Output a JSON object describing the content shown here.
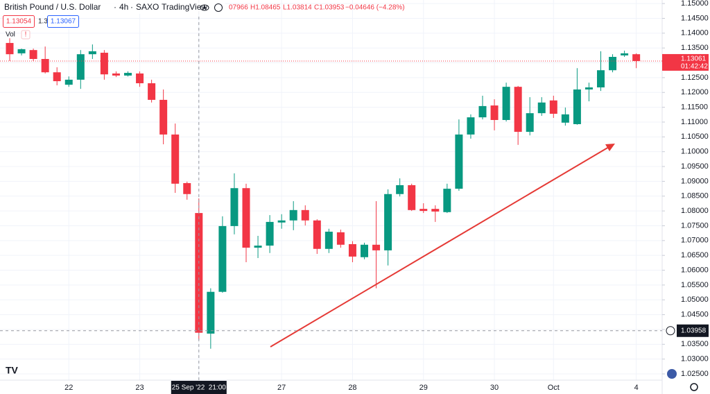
{
  "chart_data": {
    "type": "candlestick",
    "title": "British Pound / U.S. Dollar",
    "interval": "4h",
    "exchange": "SAXO",
    "source": "TradingView",
    "legend_text": [
      "07966",
      "H1.08465",
      "L1.03814",
      "C1.03953",
      "−0.04646 (−4.28%)"
    ],
    "bid": "1.13054",
    "spread": "1.3",
    "ask": "1.13067",
    "volume_label": "Vol",
    "countdown": "01:42:42",
    "up_color": "#089981",
    "down_color": "#f23645",
    "categories": [
      null,
      null,
      null,
      null,
      null,
      "22",
      null,
      null,
      null,
      null,
      null,
      "23",
      null,
      null,
      null,
      null,
      "25 Sep '22  21:00",
      null,
      null,
      null,
      null,
      null,
      null,
      "27",
      null,
      null,
      null,
      null,
      null,
      "28",
      null,
      null,
      null,
      null,
      null,
      "29",
      null,
      null,
      null,
      null,
      null,
      "30",
      null,
      null,
      null,
      null,
      "Oct",
      null,
      null,
      null,
      null,
      null,
      null,
      "4"
    ],
    "open": [
      1.1367,
      1.1332,
      1.1343,
      1.1313,
      1.1268,
      1.1226,
      1.1243,
      1.1329,
      1.1334,
      1.1264,
      1.1257,
      1.1264,
      1.1231,
      1.1175,
      1.1058,
      1.0894,
      1.0793,
      1.0386,
      1.0527,
      1.0749,
      1.0877,
      1.0676,
      1.0683,
      1.0761,
      1.0768,
      1.0803,
      1.0768,
      1.0672,
      1.0728,
      1.0688,
      1.0644,
      1.0686,
      1.0667,
      1.0857,
      1.0887,
      1.0807,
      1.0807,
      1.0796,
      1.0875,
      1.1058,
      1.1116,
      1.1156,
      1.1107,
      1.1219,
      1.1067,
      1.113,
      1.1173,
      1.1098,
      1.1093,
      1.121,
      1.1217,
      1.1275,
      1.1325,
      1.1329
    ],
    "high": [
      1.1383,
      1.1348,
      1.1348,
      1.1355,
      1.1285,
      1.1254,
      1.1343,
      1.1362,
      1.1343,
      1.1271,
      1.1271,
      1.1271,
      1.1243,
      1.121,
      1.1095,
      1.0899,
      1.0842,
      1.0539,
      1.0782,
      1.0927,
      1.0892,
      1.0716,
      1.0786,
      1.0789,
      1.0833,
      1.0819,
      1.0772,
      1.074,
      1.0737,
      1.0698,
      1.0693,
      1.0833,
      1.0873,
      1.091,
      1.0892,
      1.0826,
      1.0819,
      1.0892,
      1.1109,
      1.1126,
      1.1189,
      1.1177,
      1.1233,
      1.1222,
      1.1184,
      1.1184,
      1.1189,
      1.1149,
      1.1282,
      1.1233,
      1.1339,
      1.1329,
      1.1341,
      1.1332
    ],
    "low": [
      1.1306,
      1.1325,
      1.1306,
      1.1264,
      1.1224,
      1.1219,
      1.1212,
      1.1313,
      1.1243,
      1.1252,
      1.1254,
      1.1219,
      1.1166,
      1.1025,
      1.0861,
      1.0838,
      1.0365,
      1.0335,
      1.0524,
      1.0721,
      1.0627,
      1.0641,
      1.0658,
      1.074,
      1.0735,
      1.0751,
      1.0655,
      1.0658,
      1.0676,
      1.0627,
      1.0637,
      1.0539,
      1.0616,
      1.0849,
      1.08,
      1.0793,
      1.0763,
      1.0793,
      1.0868,
      1.1044,
      1.1109,
      1.1072,
      1.1102,
      1.1023,
      1.1055,
      1.1121,
      1.1114,
      1.1088,
      1.1091,
      1.117,
      1.1205,
      1.1268,
      1.132,
      1.1282
    ],
    "close": [
      1.1329,
      1.1346,
      1.1313,
      1.1268,
      1.1238,
      1.1243,
      1.1329,
      1.1339,
      1.1261,
      1.1257,
      1.1266,
      1.1231,
      1.1175,
      1.1058,
      1.0892,
      1.0857,
      1.0389,
      1.0527,
      1.0749,
      1.0877,
      1.0676,
      1.0683,
      1.0763,
      1.0768,
      1.0803,
      1.0768,
      1.0672,
      1.073,
      1.0686,
      1.0646,
      1.0686,
      1.0667,
      1.0857,
      1.0887,
      1.0803,
      1.08,
      1.0798,
      1.0875,
      1.1058,
      1.1116,
      1.1154,
      1.1107,
      1.1219,
      1.1067,
      1.113,
      1.1166,
      1.1128,
      1.1126,
      1.121,
      1.1217,
      1.1275,
      1.132,
      1.1332,
      1.13061
    ],
    "ylim": [
      1.0229,
      1.1512
    ],
    "yticks": [
      {
        "value": 1.025,
        "label": "1.02500"
      },
      {
        "value": 1.03,
        "label": "1.03000"
      },
      {
        "value": 1.035,
        "label": "1.03500"
      },
      {
        "value": 1.04,
        "label": "1.04000"
      },
      {
        "value": 1.045,
        "label": "1.04500"
      },
      {
        "value": 1.05,
        "label": "1.05000"
      },
      {
        "value": 1.055,
        "label": "1.05500"
      },
      {
        "value": 1.06,
        "label": "1.06000"
      },
      {
        "value": 1.065,
        "label": "1.06500"
      },
      {
        "value": 1.07,
        "label": "1.07000"
      },
      {
        "value": 1.075,
        "label": "1.07500"
      },
      {
        "value": 1.08,
        "label": "1.08000"
      },
      {
        "value": 1.085,
        "label": "1.08500"
      },
      {
        "value": 1.09,
        "label": "1.09000"
      },
      {
        "value": 1.095,
        "label": "1.09500"
      },
      {
        "value": 1.1,
        "label": "1.10000"
      },
      {
        "value": 1.105,
        "label": "1.10500"
      },
      {
        "value": 1.11,
        "label": "1.11000"
      },
      {
        "value": 1.115,
        "label": "1.11500"
      },
      {
        "value": 1.12,
        "label": "1.12000"
      },
      {
        "value": 1.125,
        "label": "1.12500"
      },
      {
        "value": 1.13,
        "label": "1.13000"
      },
      {
        "value": 1.135,
        "label": "1.13500"
      },
      {
        "value": 1.14,
        "label": "1.14000"
      },
      {
        "value": 1.145,
        "label": "1.14500"
      },
      {
        "value": 1.15,
        "label": "1.15000"
      }
    ],
    "grid": true,
    "crosshair": {
      "price": 1.03958,
      "category": 16
    }
  }
}
